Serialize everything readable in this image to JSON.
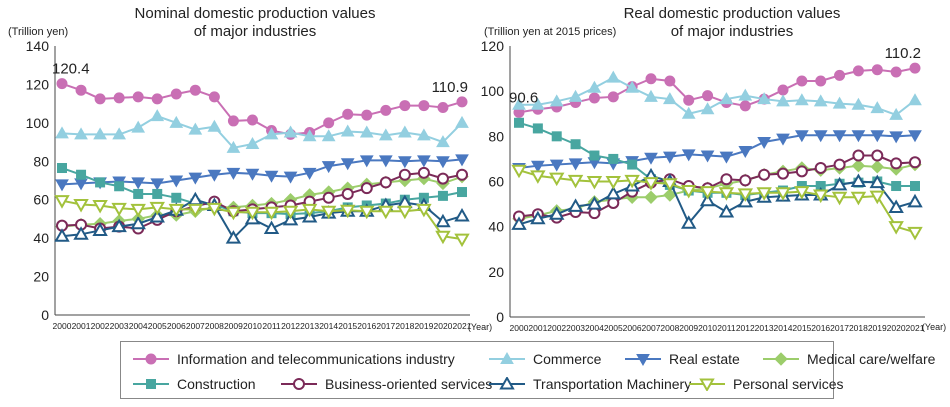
{
  "series_styles": [
    {
      "key": "info",
      "color": "#c96fb4",
      "marker": "circle-filled"
    },
    {
      "key": "commerce",
      "color": "#93cfe0",
      "marker": "triangle-up-filled"
    },
    {
      "key": "realestate",
      "color": "#4a78c0",
      "marker": "triangle-down-filled"
    },
    {
      "key": "medical",
      "color": "#9ccd6b",
      "marker": "diamond-filled"
    },
    {
      "key": "construction",
      "color": "#48a6a0",
      "marker": "square-filled"
    },
    {
      "key": "business",
      "color": "#7b2a58",
      "marker": "circle-open"
    },
    {
      "key": "transport",
      "color": "#215a86",
      "marker": "triangle-up-open"
    },
    {
      "key": "personal",
      "color": "#a3c23c",
      "marker": "triangle-down-open"
    }
  ],
  "legend": [
    "Information and telecommunications industry",
    "Commerce",
    "Real estate",
    "Medical care/welfare",
    "Construction",
    "Business-oriented services",
    "Transportation Machinery",
    "Personal services"
  ],
  "chart_data": [
    {
      "type": "line",
      "title": "Nominal domestic production values of major industries",
      "title_lines": [
        "Nominal domestic production values",
        "of major industries"
      ],
      "ylabel": "(Trillion yen)",
      "xlabel": "(Year)",
      "ylim": [
        0,
        140
      ],
      "yticks": [
        0,
        20,
        40,
        60,
        80,
        100,
        120,
        140
      ],
      "grid": false,
      "categories": [
        "2000",
        "2001",
        "2002",
        "2003",
        "2004",
        "2005",
        "2006",
        "2007",
        "2008",
        "2009",
        "2010",
        "2011",
        "2012",
        "2013",
        "2014",
        "2015",
        "2016",
        "2017",
        "2018",
        "2019",
        "2020",
        "2021"
      ],
      "annotations": [
        {
          "text": "120.4",
          "series": 0,
          "index": 0
        },
        {
          "text": "110.9",
          "series": 0,
          "index": 21
        }
      ],
      "series": [
        {
          "name": "Information and telecommunications industry",
          "values": [
            120.4,
            117,
            112.5,
            113,
            113.5,
            112.5,
            115,
            117,
            113.5,
            101,
            101.5,
            96,
            94,
            95,
            100,
            104.5,
            104,
            106.5,
            109,
            109,
            108,
            110.9
          ]
        },
        {
          "name": "Commerce",
          "values": [
            94.5,
            94,
            94,
            94,
            97.5,
            103.5,
            100,
            96.5,
            98,
            87,
            89,
            94,
            95,
            93,
            93,
            95.5,
            95,
            93.5,
            95,
            93.5,
            90,
            100
          ]
        },
        {
          "name": "Real estate",
          "values": [
            68,
            68.5,
            69,
            69.5,
            69,
            68.5,
            70,
            71.5,
            73,
            74,
            73.5,
            72.5,
            72,
            74,
            77.5,
            79,
            80.5,
            80.5,
            80,
            80.5,
            80,
            81
          ]
        },
        {
          "name": "Medical care/welfare",
          "values": [
            46,
            47,
            47.5,
            49,
            50,
            52,
            52,
            54,
            56,
            56,
            57,
            58,
            60,
            62.5,
            64,
            66,
            68,
            69,
            70,
            71,
            68.5,
            72
          ]
        },
        {
          "name": "Construction",
          "values": [
            76.5,
            73,
            69,
            67,
            63,
            63,
            61,
            58,
            57.5,
            54,
            53,
            53,
            52.5,
            53,
            54,
            56,
            57,
            58,
            60,
            61,
            62,
            64
          ]
        },
        {
          "name": "Business-oriented services",
          "values": [
            46.5,
            47,
            45,
            46,
            45,
            49.5,
            54,
            56.5,
            59,
            54,
            55,
            56,
            57,
            59,
            61,
            63,
            66,
            69,
            73,
            74,
            71,
            73
          ]
        },
        {
          "name": "Transportation Machinery",
          "values": [
            41,
            42,
            44,
            46,
            47.5,
            51,
            54.5,
            60,
            57,
            40,
            50,
            45,
            49.5,
            51,
            53,
            54,
            54,
            57,
            58.5,
            57,
            48.5,
            51.5
          ]
        },
        {
          "name": "Personal services",
          "values": [
            59.5,
            57.5,
            57,
            55.5,
            55,
            56,
            55,
            55,
            55.5,
            53.5,
            53.5,
            53.5,
            54,
            55,
            54,
            54.5,
            54,
            54,
            54,
            55,
            41,
            39.5
          ]
        }
      ]
    },
    {
      "type": "line",
      "title": "Real domestic production values of major industries",
      "title_lines": [
        "Real domestic production values",
        "of major industries"
      ],
      "ylabel": "(Trillion yen at 2015 prices)",
      "xlabel": "(Year)",
      "ylim": [
        0,
        120
      ],
      "yticks": [
        0,
        20,
        40,
        60,
        80,
        100,
        120
      ],
      "grid": false,
      "categories": [
        "2000",
        "2001",
        "2002",
        "2003",
        "2004",
        "2005",
        "2006",
        "2007",
        "2008",
        "2009",
        "2010",
        "2011",
        "2012",
        "2013",
        "2014",
        "2015",
        "2016",
        "2017",
        "2018",
        "2019",
        "2020",
        "2021"
      ],
      "annotations": [
        {
          "text": "90.6",
          "series": 0,
          "index": 0
        },
        {
          "text": "110.2",
          "series": 0,
          "index": 21
        }
      ],
      "series": [
        {
          "name": "Information and telecommunications industry",
          "values": [
            90.6,
            92,
            93,
            95,
            97,
            97.5,
            102,
            105.5,
            104.5,
            96,
            98,
            95,
            93.5,
            96.5,
            100.5,
            104.5,
            104.5,
            107,
            109,
            109.5,
            108.5,
            110.2
          ]
        },
        {
          "name": "Commerce",
          "values": [
            94,
            94,
            95.5,
            97.5,
            101.5,
            106,
            101.5,
            97.5,
            96.5,
            90,
            92,
            96.5,
            98,
            96.5,
            95.5,
            96,
            95.5,
            94.5,
            94,
            92.5,
            89.5,
            96
          ]
        },
        {
          "name": "Real estate",
          "values": [
            66,
            67,
            67.5,
            68,
            68.5,
            68,
            69,
            70.5,
            71,
            72,
            71.5,
            71,
            73.5,
            77.5,
            79,
            80.5,
            80.5,
            80.5,
            80.5,
            80.5,
            80,
            80.5
          ]
        },
        {
          "name": "Medical care/welfare",
          "values": [
            43.5,
            45,
            47,
            48,
            51,
            52,
            53,
            53,
            54,
            56,
            57,
            59,
            60.5,
            63,
            64.5,
            66,
            65,
            66,
            67,
            66.5,
            65.5,
            67.5
          ]
        },
        {
          "name": "Construction",
          "values": [
            86,
            83.5,
            80,
            76.5,
            71.5,
            70,
            67.5,
            61,
            58.5,
            56,
            55,
            55,
            54,
            55,
            56,
            58,
            58,
            59,
            59.5,
            60,
            58,
            58
          ]
        },
        {
          "name": "Business-oriented services",
          "values": [
            44.5,
            45.5,
            44,
            46.5,
            46,
            50.5,
            55.5,
            59.5,
            61,
            58,
            57,
            61,
            60.5,
            63,
            63.5,
            64.5,
            66,
            67.5,
            71.5,
            71.5,
            68,
            68.5
          ]
        },
        {
          "name": "Transportation Machinery",
          "values": [
            41,
            43.5,
            45.5,
            49,
            50,
            54.5,
            58,
            62.5,
            60,
            41.5,
            51.5,
            46.5,
            51,
            53,
            53.5,
            54,
            54,
            58.5,
            60,
            59.5,
            48.5,
            51
          ]
        },
        {
          "name": "Personal services",
          "values": [
            65,
            62.5,
            61.5,
            60.5,
            60,
            60,
            60.5,
            59.5,
            59,
            56,
            55.5,
            55,
            54.5,
            55,
            55,
            55.5,
            54,
            53,
            53,
            53.5,
            40,
            37.5
          ]
        }
      ]
    }
  ]
}
